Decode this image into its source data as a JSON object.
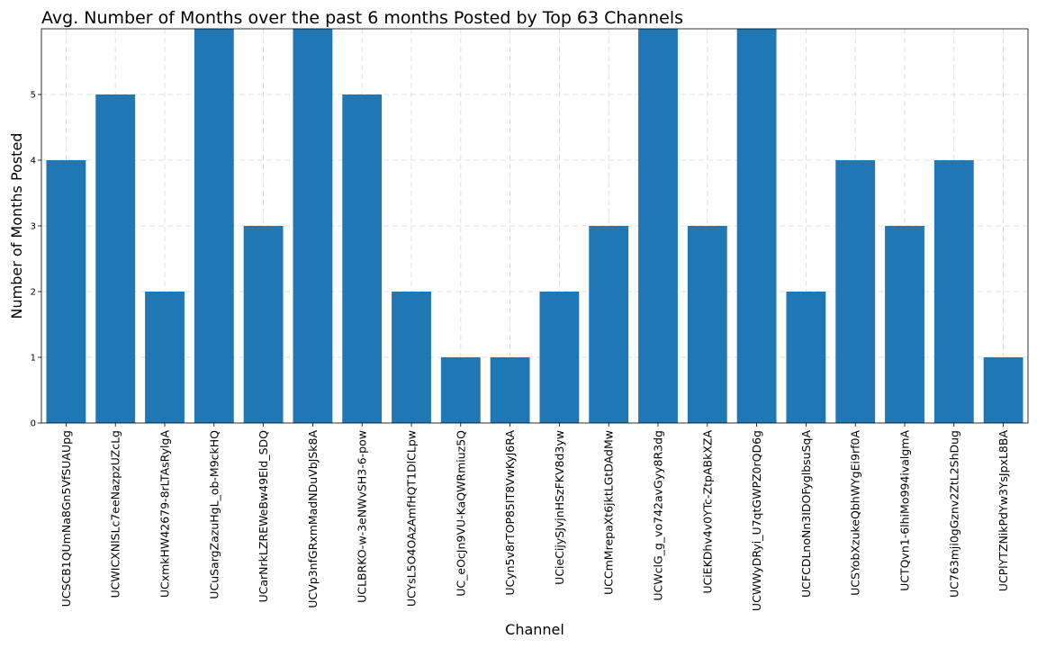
{
  "chart_data": {
    "type": "bar",
    "title": "Avg. Number of Months over the past 6 months Posted by Top 63 Channels",
    "xlabel": "Channel",
    "ylabel": "Number of Months Posted",
    "ylim": [
      0,
      6
    ],
    "yticks": [
      "0",
      "1",
      "2",
      "3",
      "4",
      "5"
    ],
    "grid": true,
    "bar_color": "#1f77b4",
    "categories": [
      "UCSCB1QUmNa8Gn5VfSUAUpg",
      "UCWICXNlSLc7eeNazpzUZcLg",
      "UCxmkHW42679-8rLTAsRylgA",
      "UCuSargZazuHgL_ob-M9ckHQ",
      "UCarNrkLZREWeBw49Eld_SDQ",
      "UCVp3nfGRxmMadNDuVbJSk8A",
      "UCLBRKO-w-3eNWvSH3-6-pow",
      "UCYsL5O4OAzAmfHQT1DlCLpw",
      "UC_eOcJn9VU-KaQWRmiuz5Q",
      "UCyn5v8rTOP85IT8VwKyJ6RA",
      "UCieCijySJvjnHSzFKV8d3yw",
      "UCCmMrepaXt6jktLGtDAdMw",
      "UCWclG_g_vo742avGyy8R3dg",
      "UCiEKDhv4v0YTc-ZtpABkXZA",
      "UCWWyDRyi_U7qtGWPZ0rQD6g",
      "UCFCDLnoNn3IDOFyglbsuSqA",
      "UCSYobXzukeQbhWYgEi9rf0A",
      "UCTQvn1-6lhiMo994ivalgmA",
      "UC763mji0gGznv2ZtL2ShDug",
      "UCPlYTZNikPdYw3YsJpxL8BA"
    ],
    "values": [
      4,
      5,
      2,
      6,
      3,
      6,
      5,
      2,
      1,
      1,
      2,
      3,
      6,
      3,
      6,
      2,
      4,
      3,
      4,
      1
    ]
  }
}
